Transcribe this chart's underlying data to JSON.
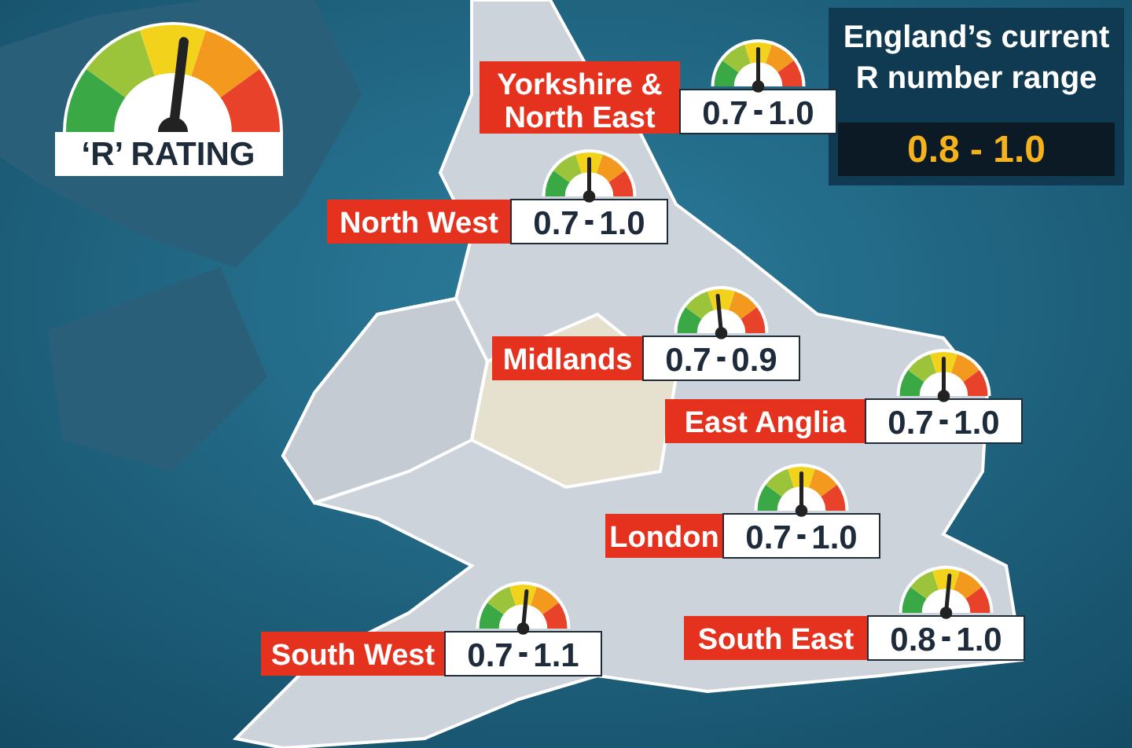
{
  "chart_data": {
    "type": "other",
    "title": "England’s current R number range",
    "categories": [
      "Yorkshire & North East",
      "North West",
      "Midlands",
      "East Anglia",
      "London",
      "South West",
      "South East"
    ],
    "series": [
      {
        "values": [
          0.7,
          0.7,
          0.7,
          0.7,
          0.7,
          0.7,
          0.8
        ],
        "value_labels": [
          "0.7",
          "0.7",
          "0.7",
          "0.7",
          "0.7",
          "0.7",
          "0.8"
        ]
      },
      {
        "values": [
          1.0,
          1.0,
          0.9,
          1.0,
          1.0,
          1.1,
          1.0
        ],
        "value_labels": [
          "1.0",
          "1.0",
          "0.9",
          "1.0",
          "1.0",
          "1.1",
          "1.0"
        ]
      }
    ],
    "annotations": [
      "‘R’ RATING",
      "0.8 - 1.0"
    ]
  }
}
